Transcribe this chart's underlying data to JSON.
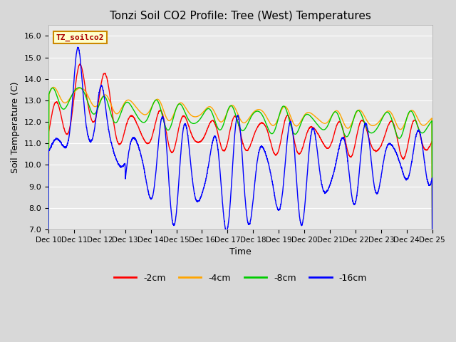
{
  "title": "Tonzi Soil CO2 Profile: Tree (West) Temperatures",
  "xlabel": "Time",
  "ylabel": "Soil Temperature (C)",
  "ylim": [
    7.0,
    16.5
  ],
  "yticks": [
    7.0,
    8.0,
    9.0,
    10.0,
    11.0,
    12.0,
    13.0,
    14.0,
    15.0,
    16.0
  ],
  "colors": {
    "-2cm": "#ff0000",
    "-4cm": "#ffa500",
    "-8cm": "#00cc00",
    "-16cm": "#0000ff"
  },
  "watermark_text": "TZ_soilco2",
  "watermark_bg": "#ffffcc",
  "watermark_border": "#cc8800",
  "plot_bg": "#e8e8e8",
  "grid_color": "#ffffff",
  "x_tick_labels": [
    "Dec 10",
    "Dec 11",
    "Dec 12",
    "Dec 13",
    "Dec 14",
    "Dec 15",
    "Dec 16",
    "Dec 17",
    "Dec 18",
    "Dec 19",
    "Dec 20",
    "Dec 21",
    "Dec 22",
    "Dec 23",
    "Dec 24",
    "Dec 25"
  ],
  "days": 15
}
